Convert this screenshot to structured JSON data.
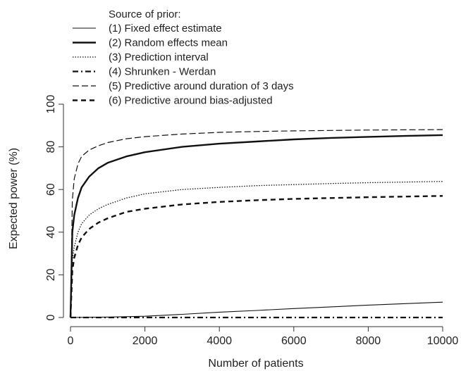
{
  "chart_data": {
    "type": "line",
    "title": "",
    "xlabel": "Number of patients",
    "ylabel": "Expected power (%)",
    "xlim": [
      0,
      10000
    ],
    "ylim": [
      0,
      100
    ],
    "xticks": [
      0,
      2000,
      4000,
      6000,
      8000,
      10000
    ],
    "yticks": [
      0,
      20,
      40,
      60,
      80,
      100
    ],
    "grid": false,
    "legend": {
      "title": "Source of prior:",
      "placement": "top-left"
    },
    "series": [
      {
        "name": "(1) Fixed effect estimate",
        "style": "thin-solid",
        "x": [
          0,
          1000,
          2000,
          3000,
          4000,
          5000,
          6000,
          7000,
          8000,
          9000,
          10000
        ],
        "y": [
          0,
          0.2,
          0.6,
          1.5,
          2.5,
          3.3,
          4.2,
          5.0,
          5.8,
          6.5,
          7.2
        ]
      },
      {
        "name": "(2) Random effects mean",
        "style": "thick-solid",
        "x": [
          0,
          50,
          100,
          200,
          300,
          500,
          750,
          1000,
          1500,
          2000,
          3000,
          4000,
          5000,
          6000,
          7000,
          8000,
          9000,
          10000
        ],
        "y": [
          0,
          40,
          48,
          56,
          61,
          66,
          70,
          72.5,
          75.5,
          77.5,
          80,
          81.5,
          82.5,
          83.5,
          84.2,
          84.7,
          85.1,
          85.5
        ]
      },
      {
        "name": "(3) Prediction interval",
        "style": "dotted",
        "x": [
          0,
          50,
          100,
          200,
          300,
          500,
          750,
          1000,
          1500,
          2000,
          3000,
          4000,
          5000,
          6000,
          7000,
          8000,
          9000,
          10000
        ],
        "y": [
          0,
          27,
          33,
          40,
          44,
          48,
          51,
          53,
          56,
          58,
          60,
          61,
          61.8,
          62.3,
          62.8,
          63.2,
          63.5,
          63.8
        ]
      },
      {
        "name": "(4) Shrunken - Werdan",
        "style": "dash-dot",
        "x": [
          0,
          10000
        ],
        "y": [
          0,
          0
        ]
      },
      {
        "name": "(5) Predictive around duration of 3 days",
        "style": "long-dash",
        "x": [
          0,
          50,
          100,
          200,
          300,
          500,
          750,
          1000,
          1500,
          2000,
          3000,
          4000,
          5000,
          6000,
          7000,
          8000,
          9000,
          10000
        ],
        "y": [
          0,
          55,
          65,
          72,
          75.5,
          78.5,
          80.5,
          82,
          83.8,
          84.8,
          86,
          86.8,
          87.2,
          87.5,
          87.7,
          87.9,
          88,
          88.1
        ]
      },
      {
        "name": "(6) Predictive around bias-adjusted",
        "style": "thick-dash",
        "x": [
          0,
          50,
          100,
          200,
          300,
          500,
          750,
          1000,
          1500,
          2000,
          3000,
          4000,
          5000,
          6000,
          7000,
          8000,
          9000,
          10000
        ],
        "y": [
          0,
          22,
          28,
          34,
          37.5,
          41.5,
          44.5,
          46.5,
          49.5,
          51,
          53,
          54.2,
          55,
          55.6,
          56,
          56.4,
          56.7,
          57
        ]
      }
    ]
  }
}
